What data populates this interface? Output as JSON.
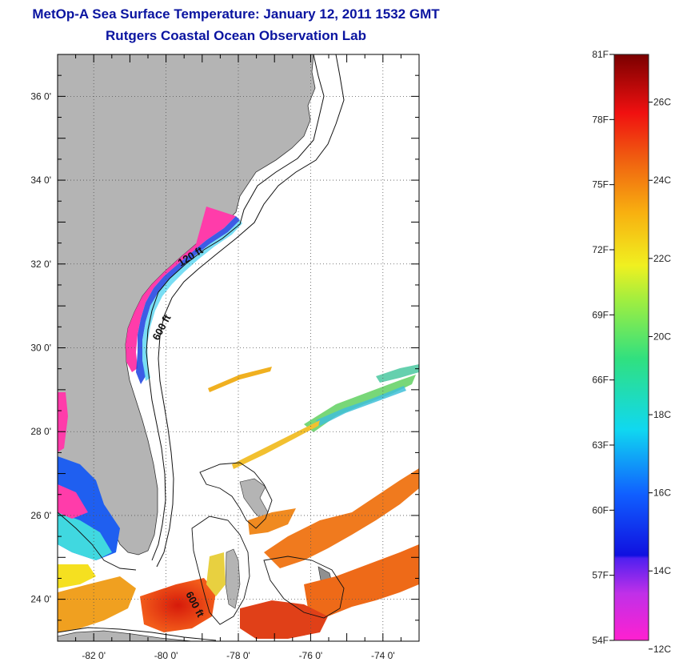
{
  "title": "MetOp-A Sea Surface Temperature:  January 12, 2011 1532 GMT",
  "subtitle": "Rutgers Coastal Ocean Observation Lab",
  "map": {
    "lon_range": [
      -83,
      -73
    ],
    "lat_range": [
      23,
      37
    ],
    "lon_ticks": [
      "-82 0'",
      "-80 0'",
      "-78 0'",
      "-76 0'",
      "-74 0'"
    ],
    "lat_ticks": [
      "36 0'",
      "34 0'",
      "32 0'",
      "30 0'",
      "28 0'",
      "26 0'",
      "24 0'"
    ],
    "contour_labels": [
      "120 ft",
      "600 ft",
      "600 ft"
    ],
    "colors": {
      "land": "#b4b4b4",
      "ocean": "#ffffff",
      "title": "#0a14a0"
    }
  },
  "colorbar": {
    "f_labels": [
      "81F",
      "78F",
      "75F",
      "72F",
      "69F",
      "66F",
      "63F",
      "60F",
      "57F",
      "54F"
    ],
    "c_labels": [
      "26C",
      "24C",
      "22C",
      "20C",
      "18C",
      "16C",
      "14C",
      "12C"
    ],
    "range_c": [
      12,
      27
    ]
  }
}
